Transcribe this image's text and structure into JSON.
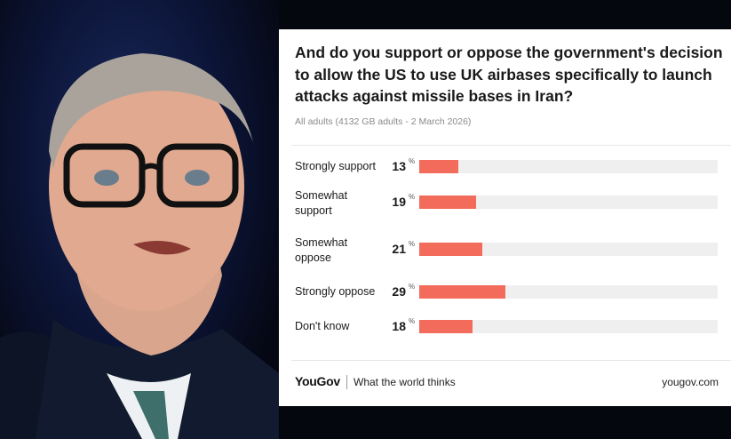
{
  "card": {
    "question": "And do you support or oppose the government's decision to allow the US to use UK airbases specifically to launch attacks against missile bases in Iran?",
    "subtitle": "All adults (4132 GB adults - 2 March 2026)"
  },
  "chart_data": {
    "type": "bar",
    "orientation": "horizontal",
    "title": "And do you support or oppose the government's decision to allow the US to use UK airbases specifically to launch attacks against missile bases in Iran?",
    "categories": [
      "Strongly support",
      "Somewhat support",
      "Somewhat oppose",
      "Strongly oppose",
      "Don't know"
    ],
    "values": [
      13,
      19,
      21,
      29,
      18
    ],
    "unit": "%",
    "xlim": [
      0,
      100
    ],
    "bar_color": "#f26b5b",
    "track_color": "#efefef",
    "grid": false,
    "legend": "none"
  },
  "footer": {
    "brand": "YouGov",
    "tagline": "What the world thinks",
    "site": "yougov.com"
  }
}
